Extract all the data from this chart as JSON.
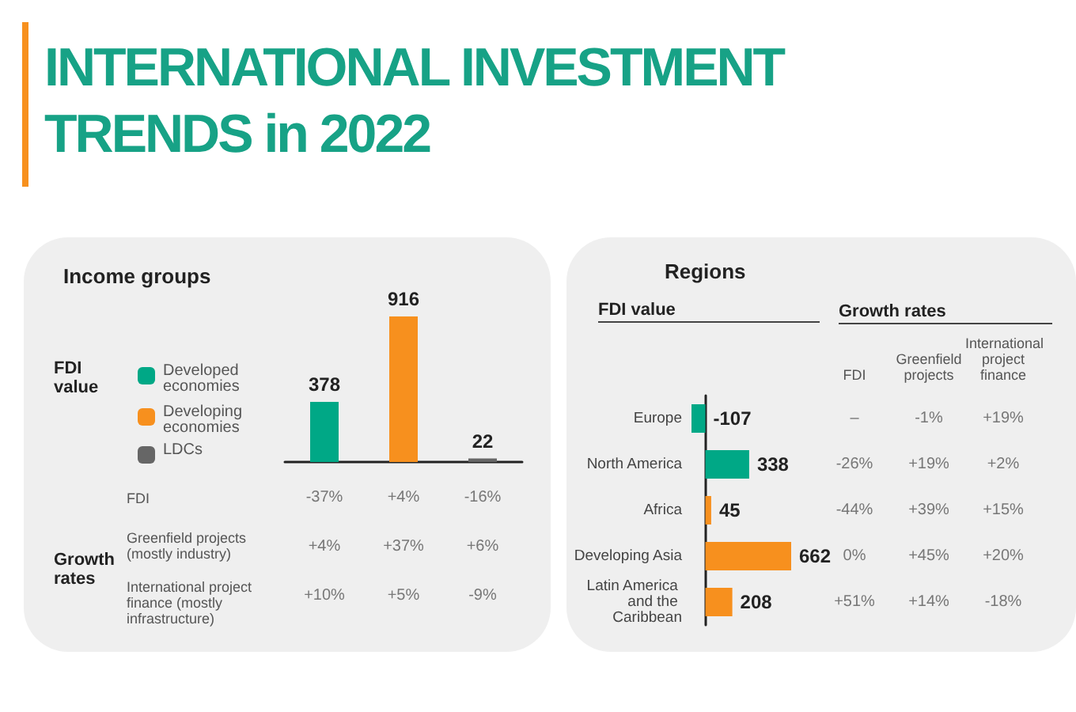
{
  "chart_data": [
    {
      "type": "other",
      "title": "INTERNATIONAL INVESTMENT TRENDS in 2022"
    },
    {
      "type": "bar",
      "title": "Income groups",
      "ylabel": "FDI value",
      "categories": [
        null,
        null,
        null
      ],
      "values": [
        378,
        916,
        22
      ],
      "colors": [
        "#00a886",
        "#f7901e",
        "#666666"
      ],
      "data_labels": true,
      "tick_labels": false,
      "annotations": [
        "Developed economies",
        "Developing economies",
        "LDCs"
      ]
    },
    {
      "type": "other",
      "title": "Growth rates",
      "y_categories": [
        "FDI",
        "Greenfield projects (mostly industry)",
        "International project finance (mostly infrastructure)"
      ],
      "annotations": [
        "-37%",
        "+4%",
        "-16%",
        "+4%",
        "+37%",
        "+6%",
        "+10%",
        "+5%",
        "-9%"
      ]
    },
    {
      "type": "bar",
      "orientation": "horizontal",
      "title": "Regions",
      "xlabel": "FDI value",
      "categories": [
        "Europe",
        "North America",
        "Africa",
        "Developing Asia",
        "Latin America and the Caribbean"
      ],
      "values": [
        -107,
        338,
        45,
        662,
        208
      ],
      "colors": [
        "#00a886",
        "#00a886",
        "#f7901e",
        "#f7901e",
        "#f7901e"
      ],
      "data_labels": true,
      "tick_labels": "y"
    },
    {
      "type": "other",
      "title": "Growth rates",
      "categories": [
        "FDI",
        "Greenfield projects",
        "International project finance"
      ],
      "annotations": [
        "–",
        "-1%",
        "+19%",
        "-26%",
        "+19%",
        "+2%",
        "-44%",
        "+39%",
        "+15%",
        "0%",
        "+45%",
        "+20%",
        "+51%",
        "+14%",
        "-18%"
      ]
    }
  ]
}
